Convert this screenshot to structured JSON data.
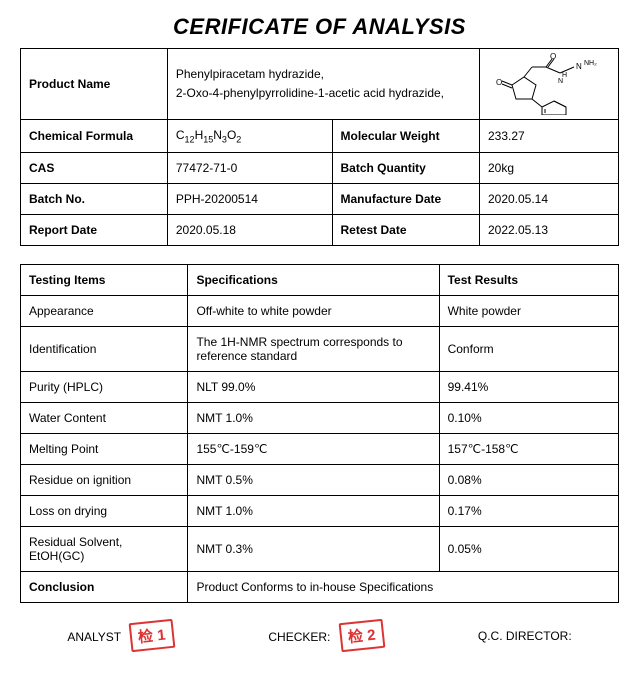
{
  "title": "CERIFICATE OF ANALYSIS",
  "product": {
    "name_label": "Product Name",
    "name_value": "Phenylpiracetam hydrazide,\n2-Oxo-4-phenylpyrrolidine-1-acetic acid hydrazide,",
    "formula_label": "Chemical Formula",
    "formula_value_html": "C<sub>12</sub>H<sub>15</sub>N<sub>3</sub>O<sub>2</sub>",
    "mw_label": "Molecular Weight",
    "mw_value": "233.27",
    "cas_label": "CAS",
    "cas_value": "77472-71-0",
    "batchqty_label": "Batch Quantity",
    "batchqty_value": "20kg",
    "batchno_label": "Batch No.",
    "batchno_value": "PPH-20200514",
    "mfg_label": "Manufacture Date",
    "mfg_value": "2020.05.14",
    "report_label": "Report Date",
    "report_value": "2020.05.18",
    "retest_label": "Retest Date",
    "retest_value": "2022.05.13"
  },
  "tests": {
    "headers": {
      "items": "Testing Items",
      "spec": "Specifications",
      "result": "Test Results"
    },
    "rows": [
      {
        "item": "Appearance",
        "spec": "Off-white to white powder",
        "result": "White powder"
      },
      {
        "item": "Identification",
        "spec": "The 1H-NMR spectrum corresponds to reference standard",
        "result": "Conform"
      },
      {
        "item": "Purity (HPLC)",
        "spec": "NLT 99.0%",
        "result": "99.41%"
      },
      {
        "item": "Water Content",
        "spec": "NMT 1.0%",
        "result": "0.10%"
      },
      {
        "item": "Melting Point",
        "spec": "155℃-159℃",
        "result": "157℃-158℃"
      },
      {
        "item": "Residue on ignition",
        "spec": "NMT 0.5%",
        "result": "0.08%"
      },
      {
        "item": "Loss on drying",
        "spec": "NMT 1.0%",
        "result": "0.17%"
      },
      {
        "item": "Residual Solvent, EtOH(GC)",
        "spec": "NMT 0.3%",
        "result": "0.05%"
      }
    ],
    "conclusion_label": "Conclusion",
    "conclusion_value": "Product Conforms to in-house Specifications"
  },
  "footer": {
    "analyst": "ANALYST",
    "checker": "CHECKER:",
    "qc": "Q.C. DIRECTOR:",
    "stamp1": "检 1",
    "stamp2": "检 2"
  },
  "colors": {
    "border": "#000000",
    "stamp": "#d33333",
    "background": "#ffffff",
    "text": "#000000"
  },
  "column_widths": {
    "info_label": "25%",
    "info_val1": "30%",
    "info_label2": "25%",
    "info_val2": "20%",
    "test_item": "28%",
    "test_spec": "42%",
    "test_result": "30%"
  }
}
